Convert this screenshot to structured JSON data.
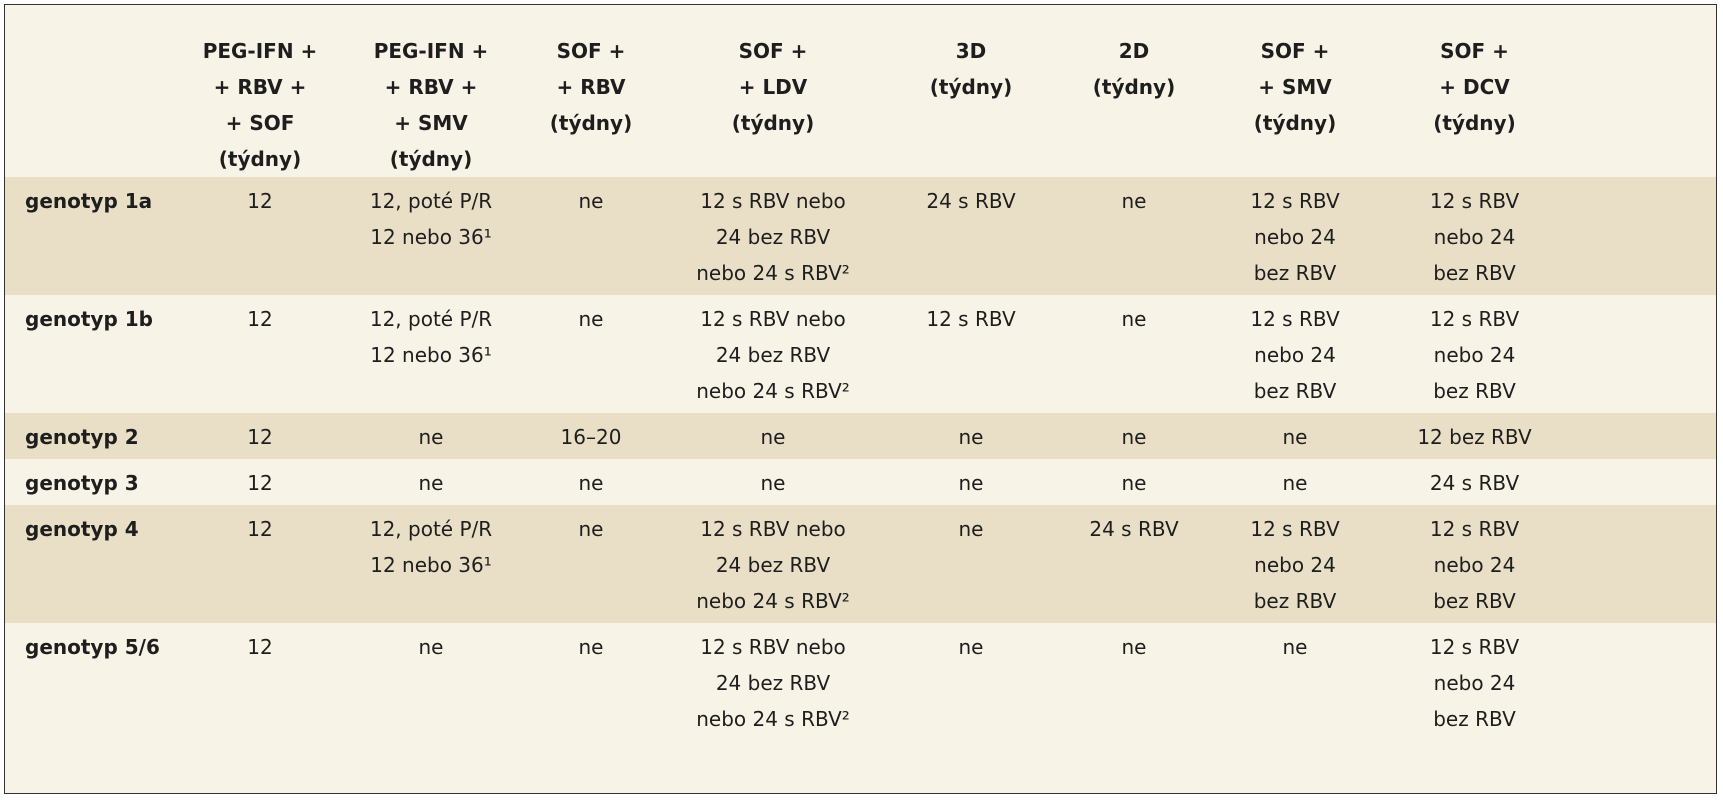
{
  "table": {
    "header": [
      [
        "PEG-IFN +",
        "+ RBV +",
        "+ SOF",
        "(týdny)"
      ],
      [
        "PEG-IFN +",
        "+ RBV +",
        "+ SMV",
        "(týdny)"
      ],
      [
        "SOF +",
        "+ RBV",
        "(týdny)"
      ],
      [
        "SOF +",
        "+ LDV",
        "(týdny)"
      ],
      [
        "3D",
        "(týdny)"
      ],
      [
        "2D",
        "(týdny)"
      ],
      [
        "SOF +",
        "+ SMV",
        "(týdny)"
      ],
      [
        "SOF +",
        "+ DCV",
        "(týdny)"
      ]
    ],
    "rows": [
      {
        "label": "genotyp 1a",
        "cells": [
          [
            "12"
          ],
          [
            "12, poté P/R",
            "12 nebo 36¹"
          ],
          [
            "ne"
          ],
          [
            "12 s RBV nebo",
            "24 bez RBV",
            "nebo 24 s RBV²"
          ],
          [
            "24 s RBV"
          ],
          [
            "ne"
          ],
          [
            "12 s RBV",
            "nebo 24",
            "bez RBV"
          ],
          [
            "12 s RBV",
            "nebo 24",
            "bez RBV"
          ]
        ]
      },
      {
        "label": "genotyp 1b",
        "cells": [
          [
            "12"
          ],
          [
            "12, poté P/R",
            "12 nebo 36¹"
          ],
          [
            "ne"
          ],
          [
            "12 s RBV nebo",
            "24 bez RBV",
            "nebo 24 s RBV²"
          ],
          [
            "12 s RBV"
          ],
          [
            "ne"
          ],
          [
            "12 s RBV",
            "nebo 24",
            "bez RBV"
          ],
          [
            "12 s RBV",
            "nebo 24",
            "bez RBV"
          ]
        ]
      },
      {
        "label": "genotyp 2",
        "cells": [
          [
            "12"
          ],
          [
            "ne"
          ],
          [
            "16–20"
          ],
          [
            "ne"
          ],
          [
            "ne"
          ],
          [
            "ne"
          ],
          [
            "ne"
          ],
          [
            "12 bez RBV"
          ]
        ]
      },
      {
        "label": "genotyp 3",
        "cells": [
          [
            "12"
          ],
          [
            "ne"
          ],
          [
            "ne"
          ],
          [
            "ne"
          ],
          [
            "ne"
          ],
          [
            "ne"
          ],
          [
            "ne"
          ],
          [
            "24 s RBV"
          ]
        ]
      },
      {
        "label": "genotyp 4",
        "cells": [
          [
            "12"
          ],
          [
            "12, poté P/R",
            "12 nebo 36¹"
          ],
          [
            "ne"
          ],
          [
            "12 s RBV nebo",
            "24 bez RBV",
            "nebo 24 s RBV²"
          ],
          [
            "ne"
          ],
          [
            "24 s RBV"
          ],
          [
            "12 s RBV",
            "nebo 24",
            "bez RBV"
          ],
          [
            "12 s RBV",
            "nebo 24",
            "bez RBV"
          ]
        ]
      },
      {
        "label": "genotyp 5/6",
        "cells": [
          [
            "12"
          ],
          [
            "ne"
          ],
          [
            "ne"
          ],
          [
            "12 s RBV nebo",
            "24 bez RBV",
            "nebo 24 s RBV²"
          ],
          [
            "ne"
          ],
          [
            "ne"
          ],
          [
            "ne"
          ],
          [
            "12 s RBV",
            "nebo 24",
            "bez RBV"
          ]
        ]
      }
    ]
  }
}
